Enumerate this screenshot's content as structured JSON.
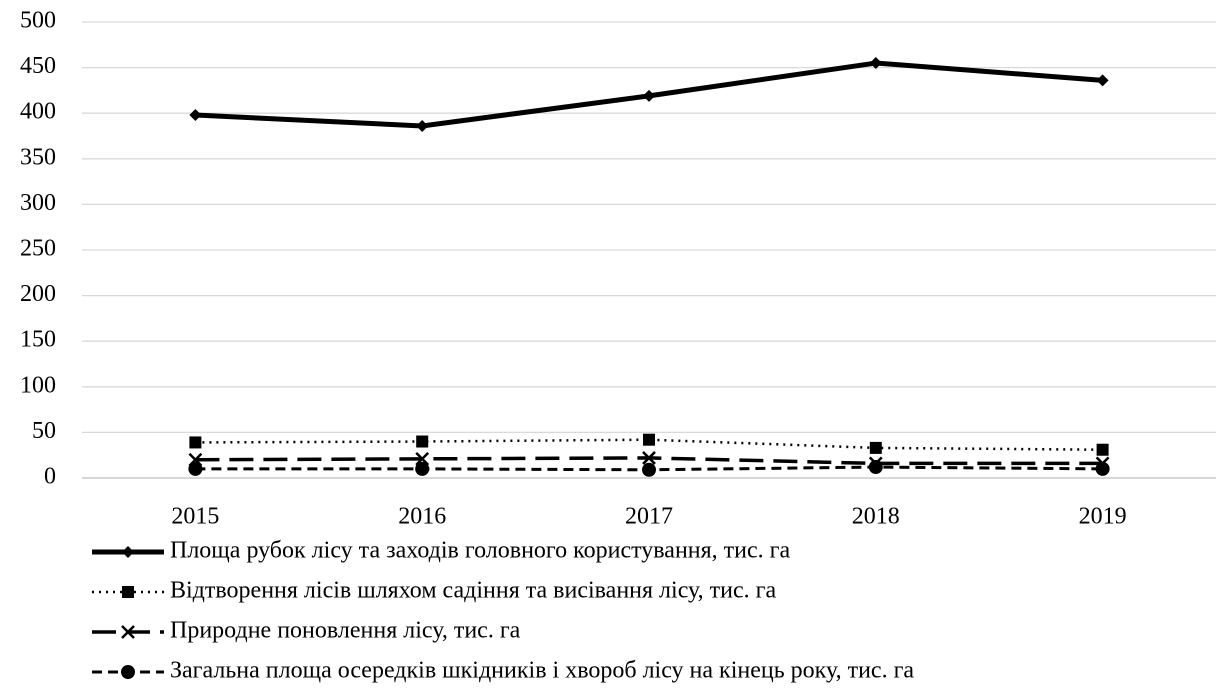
{
  "chart_data": {
    "type": "line",
    "categories": [
      "2015",
      "2016",
      "2017",
      "2018",
      "2019"
    ],
    "series": [
      {
        "name": "Площа рубок лісу та заходів головного користування, тис. га",
        "color": "#000000",
        "dash": "solid",
        "marker": "diamond",
        "values": [
          398,
          386,
          419,
          455,
          436
        ]
      },
      {
        "name": "Відтворення лісів шляхом садіння та висівання лісу, тис. га",
        "color": "#000000",
        "dash": "dotted",
        "marker": "square",
        "values": [
          39,
          40,
          42,
          33,
          31
        ]
      },
      {
        "name": "Природне поновлення лісу, тис. га",
        "color": "#000000",
        "dash": "long-dash",
        "marker": "x",
        "values": [
          20,
          21,
          22,
          16,
          16
        ]
      },
      {
        "name": "Загальна площа осередків шкідників і хвороб лісу на кінець року, тис. га",
        "color": "#000000",
        "dash": "dashed",
        "marker": "circle",
        "values": [
          10,
          10,
          9,
          12,
          10
        ]
      }
    ],
    "ylim": [
      0,
      500
    ],
    "yticks": [
      0,
      50,
      100,
      150,
      200,
      250,
      300,
      350,
      400,
      450,
      500
    ],
    "grid": true,
    "legend": "bottom"
  }
}
